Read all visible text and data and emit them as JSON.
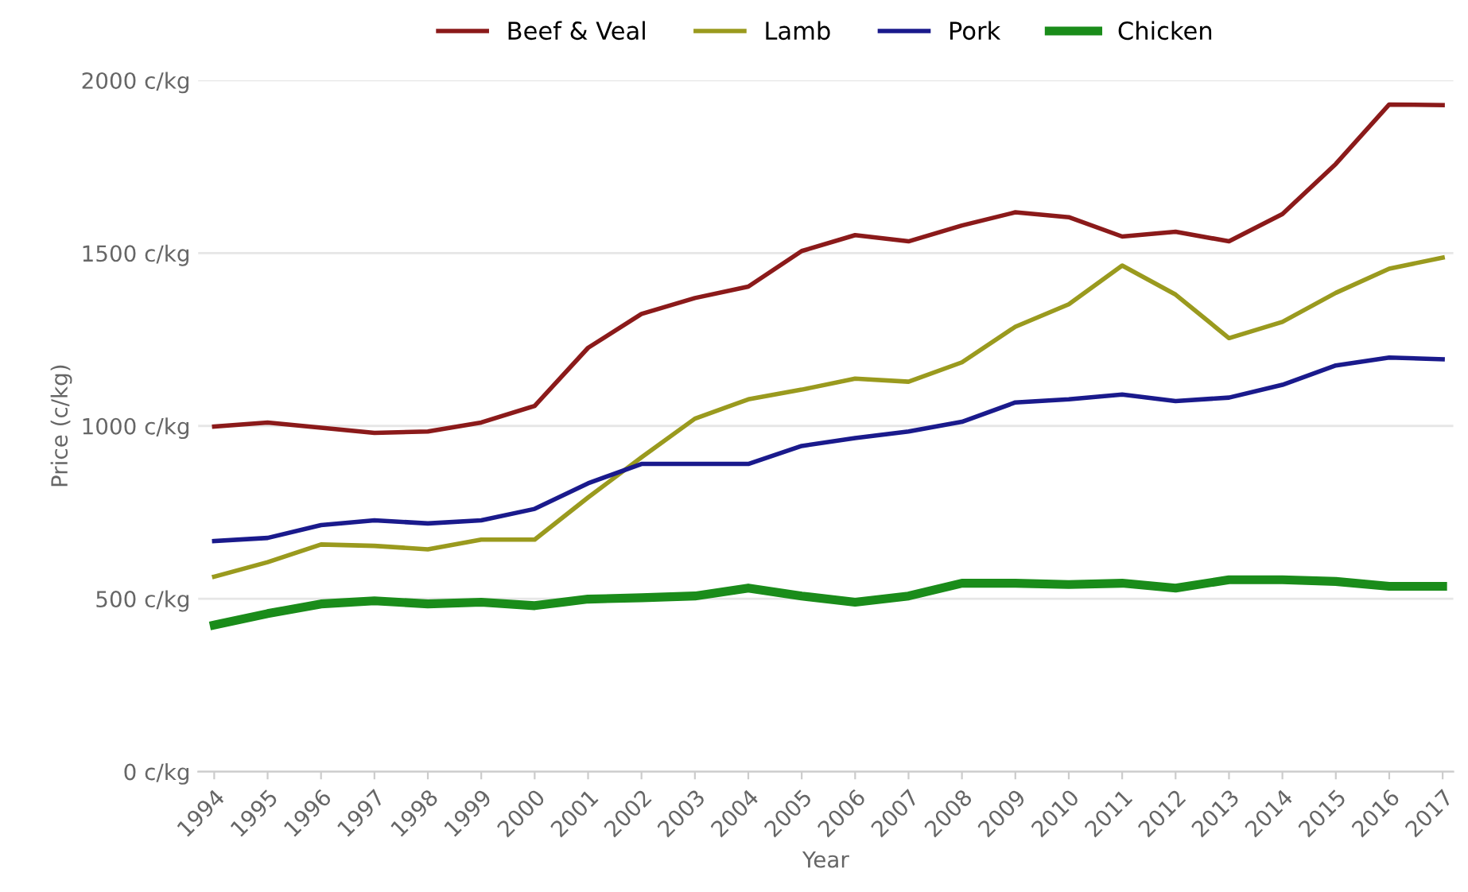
{
  "chart_data": {
    "type": "line",
    "xlabel": "Year",
    "ylabel": "Price (c/kg)",
    "categories": [
      "1994",
      "1995",
      "1996",
      "1997",
      "1998",
      "1999",
      "2000",
      "2001",
      "2002",
      "2003",
      "2004",
      "2005",
      "2006",
      "2007",
      "2008",
      "2009",
      "2010",
      "2011",
      "2012",
      "2013",
      "2014",
      "2015",
      "2016",
      "2017"
    ],
    "series": [
      {
        "name": "Beef & Veal",
        "color": "#8b1a1a",
        "values": [
          998,
          1010,
          995,
          980,
          984,
          1010,
          1058,
          1226,
          1324,
          1370,
          1403,
          1506,
          1552,
          1534,
          1580,
          1618,
          1604,
          1548,
          1562,
          1534,
          1613,
          1758,
          1930,
          1928
        ]
      },
      {
        "name": "Lamb",
        "color": "#9a9a1e",
        "values": [
          564,
          606,
          657,
          653,
          643,
          671,
          671,
          793,
          909,
          1021,
          1077,
          1105,
          1137,
          1128,
          1184,
          1287,
          1352,
          1464,
          1380,
          1254,
          1301,
          1385,
          1455,
          1487
        ]
      },
      {
        "name": "Pork",
        "color": "#1a1a8c",
        "values": [
          667,
          676,
          713,
          727,
          718,
          727,
          760,
          834,
          890,
          890,
          890,
          942,
          965,
          984,
          1012,
          1068,
          1077,
          1091,
          1072,
          1082,
          1119,
          1175,
          1198,
          1193
        ]
      },
      {
        "name": "Chicken",
        "color": "#1a8c1a",
        "values": [
          424,
          457,
          485,
          494,
          485,
          490,
          480,
          499,
          503,
          508,
          531,
          508,
          490,
          508,
          545,
          545,
          541,
          545,
          531,
          555,
          555,
          550,
          536,
          536
        ]
      }
    ],
    "ylim": [
      0,
      2000
    ],
    "yticks": [
      {
        "value": 0,
        "label": "0 c/kg"
      },
      {
        "value": 500,
        "label": "500 c/kg"
      },
      {
        "value": 1000,
        "label": "1000 c/kg"
      },
      {
        "value": 1500,
        "label": "1500 c/kg"
      },
      {
        "value": 2000,
        "label": "2000 c/kg"
      }
    ],
    "grid": "y",
    "legend": "top",
    "marker": "none",
    "line_style": "solid"
  }
}
